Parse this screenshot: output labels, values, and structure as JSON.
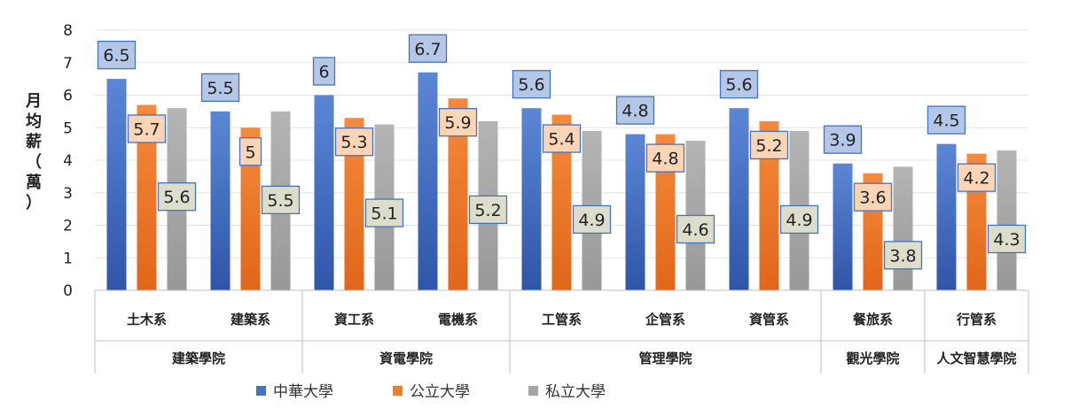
{
  "chart_data": {
    "type": "bar",
    "ylabel": "月均薪（萬）",
    "ylim": [
      0,
      8
    ],
    "yticks": [
      "0",
      "1",
      "2",
      "3",
      "4",
      "5",
      "6",
      "7",
      "8"
    ],
    "grid": true,
    "legend_position": "bottom",
    "categories": [
      "土木系",
      "建築系",
      "資工系",
      "電機系",
      "工管系",
      "企管系",
      "資管系",
      "餐旅系",
      "行管系"
    ],
    "groups": [
      {
        "label": "建築學院",
        "span": 2
      },
      {
        "label": "資電學院",
        "span": 2
      },
      {
        "label": "管理學院",
        "span": 3
      },
      {
        "label": "觀光學院",
        "span": 1
      },
      {
        "label": "人文智慧學院",
        "span": 1
      }
    ],
    "series": [
      {
        "name": "中華大學",
        "color": "#4472C4",
        "values": [
          6.5,
          5.5,
          6,
          6.7,
          5.6,
          4.8,
          5.6,
          3.9,
          4.5
        ],
        "labels": [
          "6.5",
          "5.5",
          "6",
          "6.7",
          "5.6",
          "4.8",
          "5.6",
          "3.9",
          "4.5"
        ]
      },
      {
        "name": "公立大學",
        "color": "#ED7D31",
        "values": [
          5.7,
          5,
          5.3,
          5.9,
          5.4,
          4.8,
          5.2,
          3.6,
          4.2
        ],
        "labels": [
          "5.7",
          "5",
          "5.3",
          "5.9",
          "5.4",
          "4.8",
          "5.2",
          "3.6",
          "4.2"
        ]
      },
      {
        "name": "私立大學",
        "color": "#A5A5A5",
        "values": [
          5.6,
          5.5,
          5.1,
          5.2,
          4.9,
          4.6,
          4.9,
          3.8,
          4.3
        ],
        "labels": [
          "5.6",
          "5.5",
          "5.1",
          "5.2",
          "4.9",
          "4.6",
          "4.9",
          "3.8",
          "4.3"
        ]
      }
    ]
  }
}
